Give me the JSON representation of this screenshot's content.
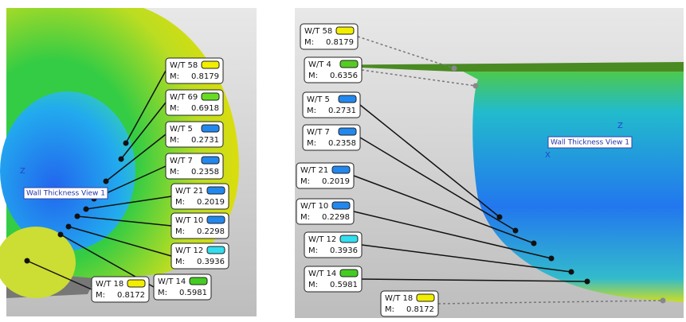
{
  "panels": [
    {
      "view_label": "Wall Thickness View 1",
      "axis_labels": [
        "Z"
      ],
      "callouts": [
        {
          "name": "W/T 58",
          "m_label": "M:",
          "value": "0.8179",
          "color": "#f2ee00"
        },
        {
          "name": "W/T 69",
          "m_label": "M:",
          "value": "0.6918",
          "color": "#66dd22"
        },
        {
          "name": "W/T 5",
          "m_label": "M:",
          "value": "0.2731",
          "color": "#2288ee"
        },
        {
          "name": "W/T 7",
          "m_label": "M:",
          "value": "0.2358",
          "color": "#2288ee"
        },
        {
          "name": "W/T 21",
          "m_label": "M:",
          "value": "0.2019",
          "color": "#2288ee"
        },
        {
          "name": "W/T 10",
          "m_label": "M:",
          "value": "0.2298",
          "color": "#2288ee"
        },
        {
          "name": "W/T 12",
          "m_label": "M:",
          "value": "0.3936",
          "color": "#33ddee"
        },
        {
          "name": "W/T 14",
          "m_label": "M:",
          "value": "0.5981",
          "color": "#44cc22"
        },
        {
          "name": "W/T 18",
          "m_label": "M:",
          "value": "0.8172",
          "color": "#f2ee00"
        }
      ]
    },
    {
      "view_label": "Wall Thickness View 1",
      "axis_labels": [
        "Z",
        "X"
      ],
      "callouts": [
        {
          "name": "W/T 58",
          "m_label": "M:",
          "value": "0.8179",
          "color": "#f2ee00"
        },
        {
          "name": "W/T 4",
          "m_label": "M:",
          "value": "0.6356",
          "color": "#55cc22"
        },
        {
          "name": "W/T 5",
          "m_label": "M:",
          "value": "0.2731",
          "color": "#2288ee"
        },
        {
          "name": "W/T 7",
          "m_label": "M:",
          "value": "0.2358",
          "color": "#2288ee"
        },
        {
          "name": "W/T 21",
          "m_label": "M:",
          "value": "0.2019",
          "color": "#2288ee"
        },
        {
          "name": "W/T 10",
          "m_label": "M:",
          "value": "0.2298",
          "color": "#2288ee"
        },
        {
          "name": "W/T 12",
          "m_label": "M:",
          "value": "0.3936",
          "color": "#33ddee"
        },
        {
          "name": "W/T 14",
          "m_label": "M:",
          "value": "0.5981",
          "color": "#44cc22"
        },
        {
          "name": "W/T 18",
          "m_label": "M:",
          "value": "0.8172",
          "color": "#f2ee00"
        }
      ]
    }
  ]
}
